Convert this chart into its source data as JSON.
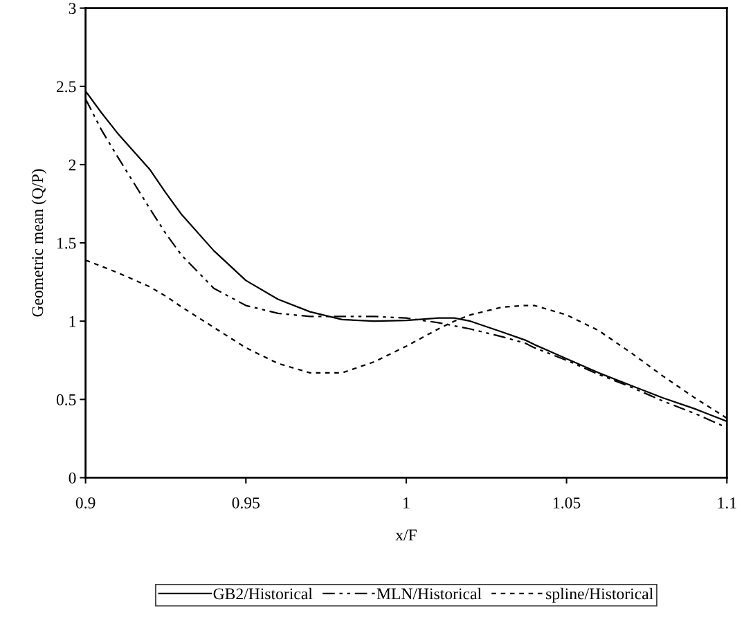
{
  "chart_data": {
    "type": "line",
    "xlabel": "x/F",
    "ylabel": "Geometric mean (Q/P)",
    "xlim": [
      0.9,
      1.1
    ],
    "xticks": [
      0.9,
      0.95,
      1,
      1.05,
      1.1
    ],
    "ylim": [
      0,
      3
    ],
    "yticks": [
      0,
      0.5,
      1,
      1.5,
      2,
      2.5,
      3
    ],
    "grid": false,
    "legend": "bottom",
    "marker": "none",
    "x": [
      0.9,
      0.905,
      0.91,
      0.92,
      0.925,
      0.93,
      0.94,
      0.95,
      0.96,
      0.97,
      0.98,
      0.99,
      1.0,
      1.01,
      1.015,
      1.02,
      1.03,
      1.037,
      1.04,
      1.05,
      1.06,
      1.07,
      1.08,
      1.09,
      1.1
    ],
    "series": [
      {
        "name": "GB2/Historical",
        "color": "#000000",
        "line_style": "solid",
        "values": [
          2.47,
          2.33,
          2.2,
          1.97,
          1.82,
          1.68,
          1.45,
          1.26,
          1.14,
          1.06,
          1.01,
          1.0,
          1.005,
          1.02,
          1.02,
          1.0,
          0.93,
          0.88,
          0.85,
          0.76,
          0.67,
          0.59,
          0.51,
          0.44,
          0.36
        ]
      },
      {
        "name": "MLN/Historical",
        "color": "#000000",
        "line_style": "dashed",
        "values": [
          2.42,
          2.22,
          2.05,
          1.72,
          1.56,
          1.42,
          1.21,
          1.1,
          1.05,
          1.03,
          1.03,
          1.03,
          1.02,
          0.99,
          0.97,
          0.95,
          0.9,
          0.86,
          0.83,
          0.75,
          0.66,
          0.58,
          0.49,
          0.41,
          0.32
        ]
      },
      {
        "name": "spline/Historical",
        "color": "#000000",
        "line_style": "dotted",
        "values": [
          1.39,
          1.35,
          1.31,
          1.22,
          1.16,
          1.09,
          0.96,
          0.83,
          0.73,
          0.67,
          0.67,
          0.74,
          0.84,
          0.95,
          1.0,
          1.04,
          1.09,
          1.1,
          1.1,
          1.04,
          0.94,
          0.8,
          0.65,
          0.51,
          0.38
        ]
      }
    ]
  }
}
